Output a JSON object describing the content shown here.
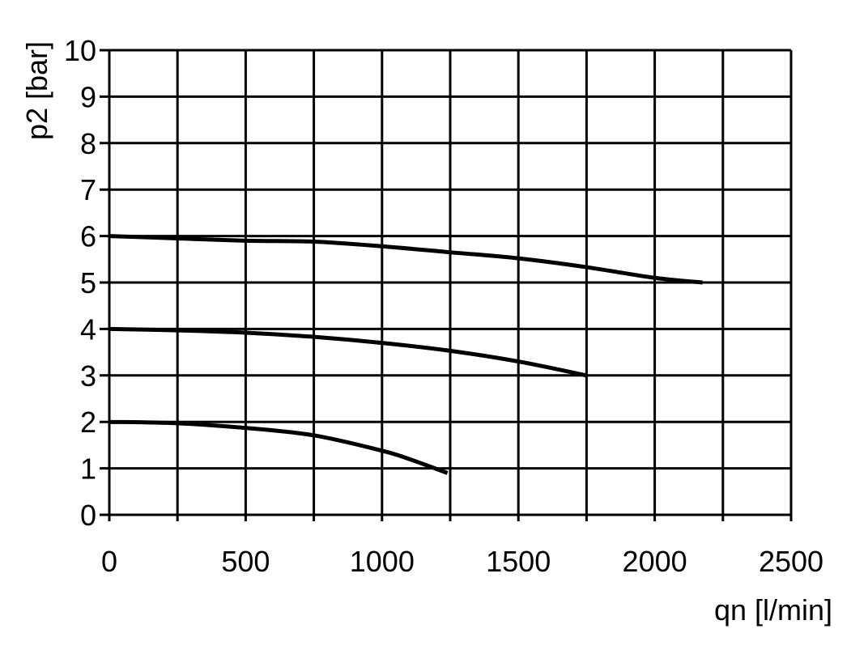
{
  "chart_data": {
    "type": "line",
    "title": "",
    "xlabel": "qn [l/min]",
    "ylabel": "p2 [bar]",
    "xlim": [
      0,
      2500
    ],
    "ylim": [
      0,
      10
    ],
    "xgrid_step": 250,
    "xticks": [
      0,
      500,
      1000,
      1500,
      2000,
      2500
    ],
    "yticks": [
      0,
      1,
      2,
      3,
      4,
      5,
      6,
      7,
      8,
      9,
      10
    ],
    "grid": true,
    "line_color": "#000000",
    "series": [
      {
        "x": [
          0,
          250,
          500,
          750,
          1000,
          1250,
          1500,
          1750,
          2000,
          2175
        ],
        "y": [
          6.0,
          5.95,
          5.9,
          5.88,
          5.78,
          5.65,
          5.52,
          5.33,
          5.1,
          5.0
        ]
      },
      {
        "x": [
          0,
          250,
          500,
          750,
          1000,
          1250,
          1500,
          1750
        ],
        "y": [
          4.0,
          3.97,
          3.92,
          3.83,
          3.7,
          3.53,
          3.3,
          3.0
        ]
      },
      {
        "x": [
          0,
          250,
          500,
          750,
          1000,
          1100,
          1240
        ],
        "y": [
          2.0,
          1.97,
          1.87,
          1.71,
          1.38,
          1.2,
          0.9
        ]
      }
    ]
  }
}
